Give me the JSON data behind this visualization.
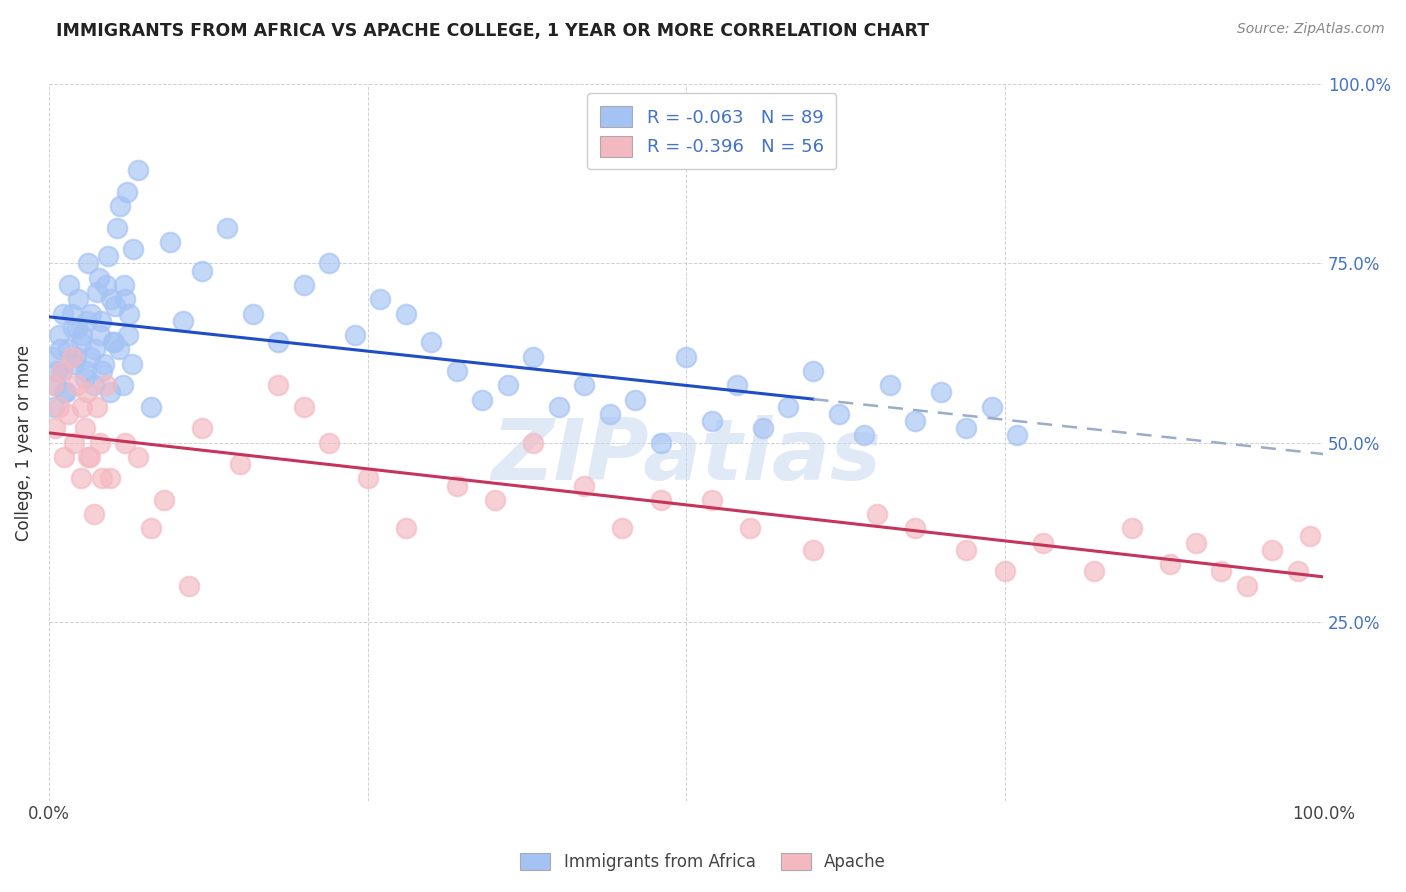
{
  "title": "IMMIGRANTS FROM AFRICA VS APACHE COLLEGE, 1 YEAR OR MORE CORRELATION CHART",
  "source": "Source: ZipAtlas.com",
  "ylabel": "College, 1 year or more",
  "legend_label1": "Immigrants from Africa",
  "legend_label2": "Apache",
  "r1": "-0.063",
  "n1": "89",
  "r2": "-0.396",
  "n2": "56",
  "color_blue": "#a4c2f4",
  "color_pink": "#f4b8c1",
  "line_blue": "#1f4dc5",
  "line_pink": "#c5345a",
  "line_dash": "#9aaccc",
  "watermark": "ZIPatlas",
  "watermark_color": "#c8d8f0",
  "ytick_color": "#4472c4",
  "title_color": "#222222",
  "source_color": "#888888",
  "grid_color": "#cccccc",
  "bg_color": "#ffffff",
  "blue_x": [
    0.3,
    0.5,
    0.8,
    1.0,
    1.2,
    1.5,
    1.8,
    2.0,
    2.2,
    2.5,
    2.8,
    3.0,
    3.2,
    3.5,
    3.8,
    4.0,
    4.2,
    4.5,
    4.8,
    5.0,
    5.2,
    5.5,
    5.8,
    6.0,
    6.2,
    6.5,
    0.4,
    0.6,
    0.9,
    1.1,
    1.3,
    1.6,
    1.9,
    2.1,
    2.3,
    2.6,
    2.9,
    3.1,
    3.3,
    3.6,
    3.9,
    4.1,
    4.3,
    4.6,
    4.9,
    5.1,
    5.3,
    5.6,
    5.9,
    6.1,
    6.3,
    6.6,
    7.0,
    8.0,
    9.5,
    10.5,
    12.0,
    14.0,
    16.0,
    18.0,
    20.0,
    22.0,
    24.0,
    26.0,
    28.0,
    30.0,
    32.0,
    34.0,
    36.0,
    38.0,
    40.0,
    42.0,
    44.0,
    46.0,
    48.0,
    50.0,
    52.0,
    54.0,
    56.0,
    58.0,
    60.0,
    62.0,
    64.0,
    66.0,
    68.0,
    70.0,
    72.0,
    74.0,
    76.0
  ],
  "blue_y": [
    62,
    58,
    65,
    60,
    57,
    63,
    68,
    61,
    66,
    64,
    59,
    67,
    62,
    58,
    71,
    65,
    60,
    72,
    57,
    64,
    69,
    63,
    58,
    70,
    65,
    61,
    55,
    60,
    63,
    68,
    57,
    72,
    66,
    62,
    70,
    65,
    60,
    75,
    68,
    63,
    73,
    67,
    61,
    76,
    70,
    64,
    80,
    83,
    72,
    85,
    68,
    77,
    88,
    55,
    78,
    67,
    74,
    80,
    68,
    64,
    72,
    75,
    65,
    70,
    68,
    64,
    60,
    56,
    58,
    62,
    55,
    58,
    54,
    56,
    50,
    62,
    53,
    58,
    52,
    55,
    60,
    54,
    51,
    58,
    53,
    57,
    52,
    55,
    51
  ],
  "pink_x": [
    0.3,
    0.5,
    0.8,
    1.0,
    1.2,
    1.5,
    1.8,
    2.0,
    2.2,
    2.5,
    2.8,
    3.0,
    3.2,
    3.5,
    3.8,
    4.0,
    4.2,
    4.5,
    7.0,
    9.0,
    12.0,
    15.0,
    18.0,
    22.0,
    25.0,
    28.0,
    32.0,
    35.0,
    38.0,
    42.0,
    45.0,
    48.0,
    52.0,
    55.0,
    60.0,
    65.0,
    68.0,
    72.0,
    75.0,
    78.0,
    82.0,
    85.0,
    88.0,
    90.0,
    92.0,
    94.0,
    96.0,
    98.0,
    99.0,
    2.6,
    3.1,
    4.8,
    6.0,
    8.0,
    11.0,
    20.0
  ],
  "pink_y": [
    58,
    52,
    55,
    60,
    48,
    54,
    62,
    50,
    58,
    45,
    52,
    57,
    48,
    40,
    55,
    50,
    45,
    58,
    48,
    42,
    52,
    47,
    58,
    50,
    45,
    38,
    44,
    42,
    50,
    44,
    38,
    42,
    42,
    38,
    35,
    40,
    38,
    35,
    32,
    36,
    32,
    38,
    33,
    36,
    32,
    30,
    35,
    32,
    37,
    55,
    48,
    45,
    50,
    38,
    30,
    55
  ]
}
